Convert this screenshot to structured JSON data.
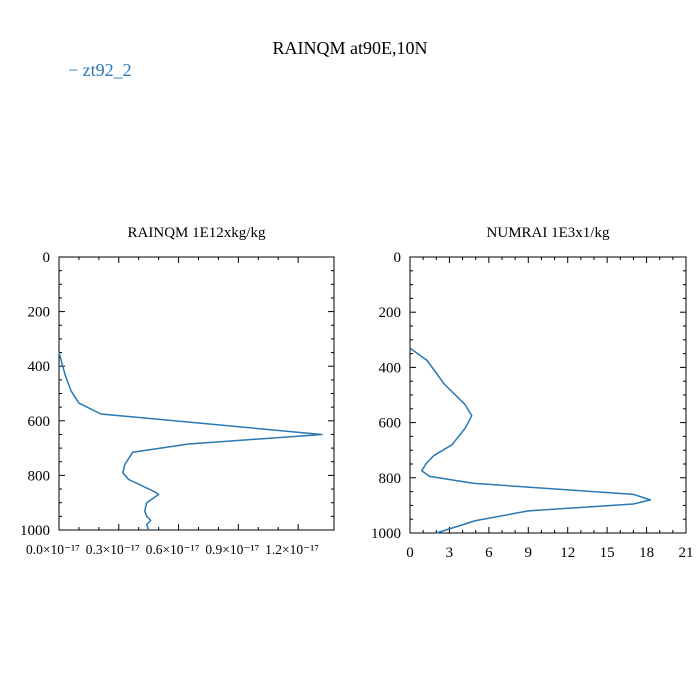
{
  "figure": {
    "title": "RAINQM at90E,10N",
    "legend": [
      {
        "label": "− zt92_2",
        "color": "#2878b5"
      }
    ]
  },
  "chart_data": [
    {
      "type": "line",
      "title": "RAINQM  1E12xkg/kg",
      "xlabel": "",
      "ylabel": "",
      "x_tick_labels": [
        "0.0×10⁻¹⁷",
        "0.3×10⁻¹⁷",
        "0.6×10⁻¹⁷",
        "0.9×10⁻¹⁷",
        "1.2×10⁻¹⁷"
      ],
      "xlim": [
        0.0,
        1.38
      ],
      "ylim": [
        1000,
        0
      ],
      "y_ticks": [
        0,
        200,
        400,
        600,
        800,
        1000
      ],
      "grid": false,
      "series": [
        {
          "color": "#2878b5",
          "x": [
            0.0,
            0.03,
            0.06,
            0.1,
            0.21,
            1.32,
            0.65,
            0.37,
            0.33,
            0.32,
            0.35,
            0.48,
            0.5,
            0.44,
            0.43,
            0.44,
            0.46,
            0.44,
            0.45
          ],
          "y": [
            350,
            430,
            490,
            535,
            575,
            650,
            685,
            715,
            760,
            790,
            815,
            860,
            870,
            900,
            930,
            950,
            965,
            980,
            1000
          ]
        }
      ]
    },
    {
      "type": "line",
      "title": "NUMRAI  1E3x1/kg",
      "xlabel": "",
      "ylabel": "",
      "x_tick_labels": [
        "0",
        "3",
        "6",
        "9",
        "12",
        "15",
        "18",
        "21"
      ],
      "xlim": [
        0,
        21
      ],
      "ylim": [
        1000,
        0
      ],
      "y_ticks": [
        0,
        200,
        400,
        600,
        800,
        1000
      ],
      "grid": false,
      "series": [
        {
          "color": "#2878b5",
          "x": [
            0.0,
            1.3,
            2.6,
            4.2,
            4.7,
            4.2,
            3.2,
            1.8,
            1.2,
            0.9,
            1.5,
            4.8,
            17.0,
            18.3,
            17.0,
            9.0,
            5.0,
            2.0
          ],
          "y": [
            330,
            375,
            460,
            535,
            575,
            620,
            680,
            720,
            750,
            775,
            795,
            820,
            860,
            880,
            895,
            920,
            955,
            1000
          ]
        }
      ]
    }
  ]
}
